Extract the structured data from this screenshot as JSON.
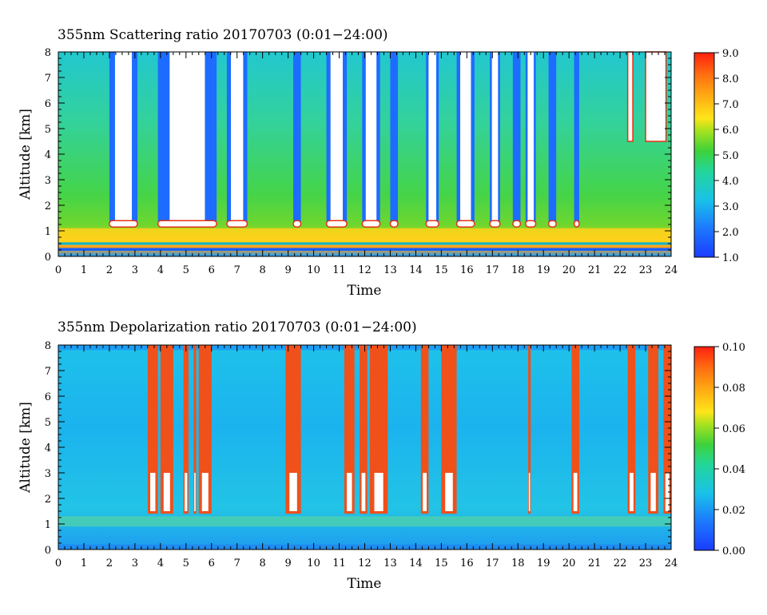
{
  "chart_data": [
    {
      "type": "heatmap",
      "title": "355nm  Scattering ratio   20170703  (0:01−24:00)",
      "xlabel": "Time",
      "ylabel": "Altitude [km]",
      "xlim": [
        0,
        24
      ],
      "ylim": [
        0,
        8
      ],
      "x_ticks": [
        "0",
        "1",
        "2",
        "3",
        "4",
        "5",
        "6",
        "7",
        "8",
        "9",
        "10",
        "11",
        "12",
        "13",
        "14",
        "15",
        "16",
        "17",
        "18",
        "19",
        "20",
        "21",
        "22",
        "23",
        "24"
      ],
      "y_ticks": [
        "0",
        "1",
        "2",
        "3",
        "4",
        "5",
        "6",
        "7",
        "8"
      ],
      "colorbar": {
        "min": 1.0,
        "max": 9.0,
        "ticks": [
          "1.0",
          "2.0",
          "3.0",
          "4.0",
          "5.0",
          "6.0",
          "7.0",
          "8.0",
          "9.0"
        ]
      },
      "features": {
        "boundary_layer_top_km": 1.1,
        "cloud_columns_hours": [
          [
            2.0,
            3.1
          ],
          [
            3.9,
            6.2
          ],
          [
            6.6,
            7.4
          ],
          [
            9.2,
            9.5
          ],
          [
            10.5,
            11.3
          ],
          [
            11.9,
            12.6
          ],
          [
            13.0,
            13.3
          ],
          [
            14.4,
            14.9
          ],
          [
            15.6,
            16.3
          ],
          [
            16.9,
            17.3
          ],
          [
            17.8,
            18.1
          ],
          [
            18.3,
            18.7
          ],
          [
            19.2,
            19.5
          ],
          [
            20.2,
            20.4
          ]
        ],
        "high_cloud_band": [
          [
            22.3,
            22.5
          ],
          [
            23.0,
            23.8
          ]
        ]
      }
    },
    {
      "type": "heatmap",
      "title": "355nm  Depolarization ratio   20170703  (0:01−24:00)",
      "xlabel": "Time",
      "ylabel": "Altitude [km]",
      "xlim": [
        0,
        24
      ],
      "ylim": [
        0,
        8
      ],
      "x_ticks": [
        "0",
        "1",
        "2",
        "3",
        "4",
        "5",
        "6",
        "7",
        "8",
        "9",
        "10",
        "11",
        "12",
        "13",
        "14",
        "15",
        "16",
        "17",
        "18",
        "19",
        "20",
        "21",
        "22",
        "23",
        "24"
      ],
      "y_ticks": [
        "0",
        "1",
        "2",
        "3",
        "4",
        "5",
        "6",
        "7",
        "8"
      ],
      "colorbar": {
        "min": 0.0,
        "max": 0.1,
        "ticks": [
          "0.00",
          "0.02",
          "0.04",
          "0.06",
          "0.08",
          "0.10"
        ]
      },
      "features": {
        "depol_columns_hours": [
          [
            3.5,
            3.9
          ],
          [
            4.0,
            4.5
          ],
          [
            4.9,
            5.1
          ],
          [
            5.3,
            5.4
          ],
          [
            5.5,
            6.0
          ],
          [
            8.9,
            9.5
          ],
          [
            11.2,
            11.6
          ],
          [
            11.8,
            12.1
          ],
          [
            12.2,
            12.9
          ],
          [
            14.2,
            14.5
          ],
          [
            15.0,
            15.6
          ],
          [
            18.4,
            18.5
          ],
          [
            20.1,
            20.4
          ],
          [
            22.3,
            22.6
          ],
          [
            23.1,
            23.5
          ],
          [
            23.7,
            24.0
          ]
        ]
      }
    }
  ]
}
